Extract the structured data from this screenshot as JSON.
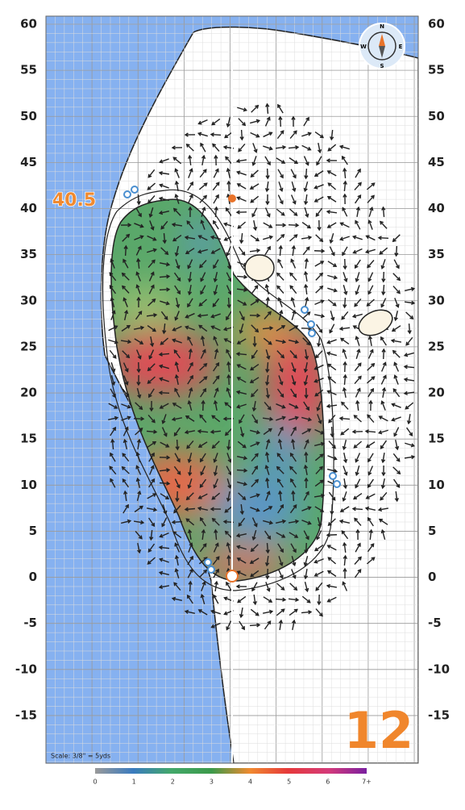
{
  "yard_ticks": [
    60,
    55,
    50,
    45,
    40,
    35,
    30,
    25,
    20,
    15,
    10,
    5,
    0,
    -5,
    -10,
    -15
  ],
  "green_depth": "40.5",
  "hole_number": "12",
  "scale_note": "Scale: 3/8\" = 5yds",
  "compass": {
    "north": "N",
    "east": "E",
    "south": "S",
    "west": "W"
  },
  "slope_legend": {
    "labels": [
      "0",
      "1",
      "2",
      "3",
      "4",
      "5",
      "6",
      "7+"
    ]
  }
}
